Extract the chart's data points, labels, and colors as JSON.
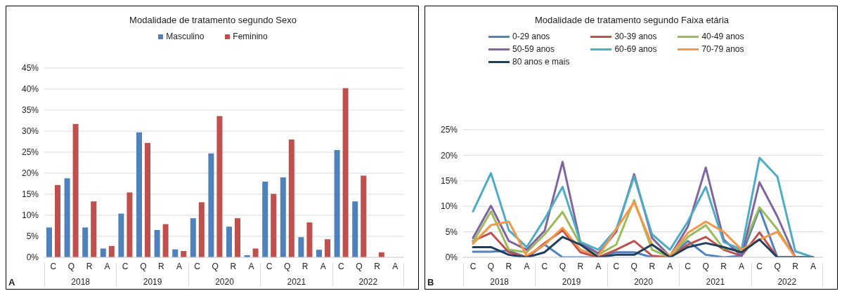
{
  "chart_data": [
    {
      "type": "bar",
      "title": "Modalidade de tratamento segundo Sexo",
      "categories": [
        "C",
        "Q",
        "R",
        "A",
        "C",
        "Q",
        "R",
        "A",
        "C",
        "Q",
        "R",
        "A",
        "C",
        "Q",
        "R",
        "A",
        "C",
        "Q",
        "R",
        "A"
      ],
      "series": [
        {
          "name": "Masculino",
          "color": "#4f81bd",
          "values": [
            7.1,
            18.8,
            7.1,
            2.1,
            10.4,
            29.7,
            6.5,
            1.9,
            9.3,
            24.7,
            7.3,
            0.5,
            18.0,
            19.0,
            4.8,
            1.8,
            25.5,
            13.3,
            0,
            0
          ]
        },
        {
          "name": "Feminino",
          "color": "#c0504d",
          "values": [
            17.2,
            31.7,
            13.3,
            2.7,
            15.4,
            27.2,
            7.9,
            1.5,
            13.1,
            33.6,
            9.3,
            2.1,
            15.1,
            28.0,
            8.3,
            4.3,
            40.2,
            19.4,
            1.2,
            0
          ]
        }
      ],
      "ylim": [
        0,
        45
      ],
      "yticks": [
        {
          "value": 0,
          "label": "0%"
        },
        {
          "value": 5,
          "label": "5%"
        },
        {
          "value": 10,
          "label": "10%"
        },
        {
          "value": 15,
          "label": "15%"
        },
        {
          "value": 20,
          "label": "20%"
        },
        {
          "value": 25,
          "label": "25%"
        },
        {
          "value": 30,
          "label": "30%"
        },
        {
          "value": 35,
          "label": "35%"
        },
        {
          "value": 40,
          "label": "40%"
        },
        {
          "value": 45,
          "label": "45%"
        }
      ],
      "grid": "y",
      "legend": "top",
      "annotations": [
        "2018",
        "2019",
        "2020",
        "2021",
        "2022",
        "A"
      ]
    },
    {
      "type": "line",
      "title": "Modalidade  de tratamento  segundo  Faixa etária",
      "categories": [
        "C",
        "Q",
        "R",
        "A",
        "C",
        "Q",
        "R",
        "A",
        "C",
        "Q",
        "R",
        "A",
        "C",
        "Q",
        "R",
        "A",
        "C",
        "Q",
        "R",
        "A"
      ],
      "series": [
        {
          "name": "0-29 anos",
          "color": "#4f81bd",
          "values": [
            1.1,
            1.1,
            1.3,
            0,
            2.5,
            0,
            0,
            0,
            1,
            1,
            0,
            0,
            3.2,
            0.5,
            0,
            0.3,
            9.5,
            0,
            0,
            0
          ]
        },
        {
          "name": "30-39 anos",
          "color": "#c0504d",
          "values": [
            3.2,
            4.8,
            1,
            0,
            2.8,
            5.3,
            1,
            0,
            1.5,
            3.2,
            0.3,
            0,
            2.5,
            4,
            1.5,
            0.3,
            4.9,
            0,
            0,
            0
          ]
        },
        {
          "name": "40-49 anos",
          "color": "#9bbb59",
          "values": [
            3,
            9,
            1.5,
            1,
            4.5,
            8.9,
            2.5,
            0.5,
            2.5,
            11.2,
            1.5,
            0,
            4,
            6.3,
            1.7,
            1.5,
            9.8,
            5.5,
            0,
            0
          ]
        },
        {
          "name": "50-59 anos",
          "color": "#8064a2",
          "values": [
            3.8,
            10.1,
            3.2,
            1.5,
            5.2,
            18.7,
            2.8,
            0.8,
            5,
            16.3,
            3.8,
            0.2,
            6,
            17.6,
            3.5,
            0.3,
            14.7,
            8,
            0,
            0
          ]
        },
        {
          "name": "60-69 anos",
          "color": "#4bacc6",
          "values": [
            9,
            16.5,
            5.3,
            2,
            7.5,
            13.8,
            3,
            1.5,
            5.5,
            15.8,
            4.5,
            1.5,
            7,
            13.8,
            3,
            1.5,
            19.5,
            15.8,
            1.2,
            0
          ]
        },
        {
          "name": "70-79 anos",
          "color": "#f79646",
          "values": [
            2.7,
            6.3,
            7,
            0.3,
            2.5,
            5.8,
            1.5,
            0.3,
            5.5,
            10.8,
            2.5,
            0.3,
            4.8,
            7,
            5,
            1.5,
            3.5,
            5,
            0,
            0
          ]
        },
        {
          "name": "80 anos e mais",
          "color": "#1f3d5c",
          "values": [
            2,
            2,
            0.5,
            0,
            1,
            4,
            2.5,
            0,
            0.5,
            0.5,
            2.5,
            0,
            2,
            2.8,
            2,
            1,
            3.5,
            0,
            0,
            0
          ]
        }
      ],
      "ylim": [
        0,
        25
      ],
      "yticks": [
        {
          "value": 0,
          "label": "0%"
        },
        {
          "value": 5,
          "label": "5%"
        },
        {
          "value": 10,
          "label": "10%"
        },
        {
          "value": 15,
          "label": "15%"
        },
        {
          "value": 20,
          "label": "20%"
        },
        {
          "value": 25,
          "label": "25%"
        }
      ],
      "grid": "y",
      "legend": "top",
      "annotations": [
        "2018",
        "2019",
        "2020",
        "2021",
        "2022",
        "B"
      ]
    }
  ]
}
